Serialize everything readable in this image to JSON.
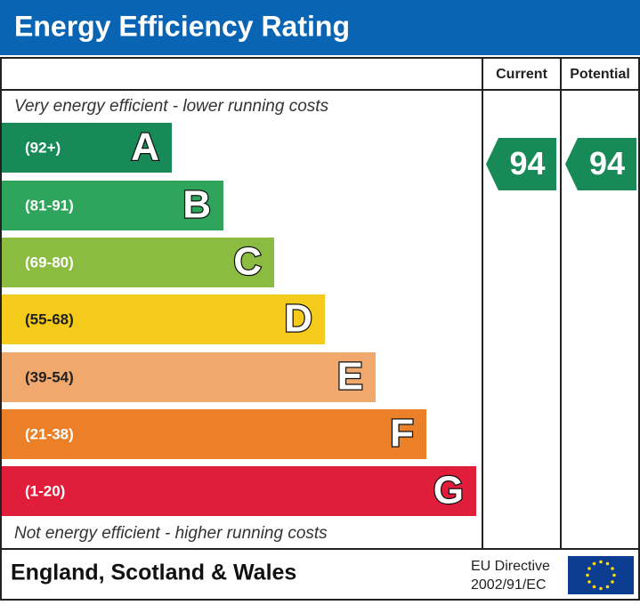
{
  "header": {
    "title": "Energy Efficiency Rating"
  },
  "columns": [
    "Current",
    "Potential"
  ],
  "top_note": "Very energy efficient - lower running costs",
  "bottom_note": "Not energy efficient - higher running costs",
  "bands": [
    {
      "range": "(92+)",
      "letter": "A",
      "color": "#178a58"
    },
    {
      "range": "(81-91)",
      "letter": "B",
      "color": "#2ea55a"
    },
    {
      "range": "(69-80)",
      "letter": "C",
      "color": "#8cbb42"
    },
    {
      "range": "(55-68)",
      "letter": "D",
      "color": "#f4cb1a"
    },
    {
      "range": "(39-54)",
      "letter": "E",
      "color": "#f0a86c"
    },
    {
      "range": "(21-38)",
      "letter": "F",
      "color": "#eb8028"
    },
    {
      "range": "(1-20)",
      "letter": "G",
      "color": "#e01e3c"
    }
  ],
  "current": {
    "value": 94,
    "color": "#178a58"
  },
  "potential": {
    "value": 94,
    "color": "#178a58"
  },
  "footer": {
    "region": "England, Scotland & Wales",
    "directive_line1": "EU Directive",
    "directive_line2": "2002/91/EC"
  }
}
